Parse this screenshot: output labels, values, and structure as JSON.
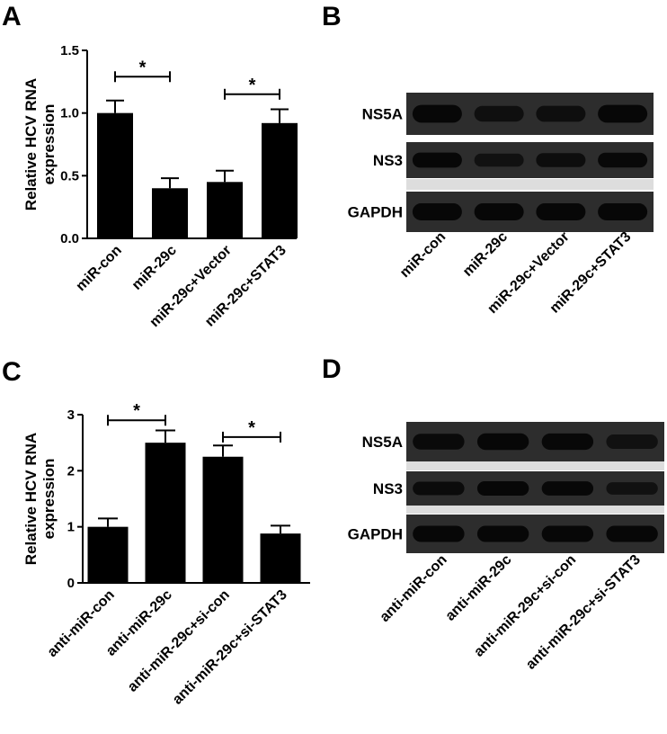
{
  "panels": {
    "A": "A",
    "B": "B",
    "C": "C",
    "D": "D"
  },
  "chart_data": [
    {
      "type": "bar",
      "panel": "A",
      "title": "",
      "xlabel": "",
      "ylabel": "Relative HCV RNA expression",
      "categories": [
        "miR-con",
        "miR-29c",
        "miR-29c+Vector",
        "miR-29c+STAT3"
      ],
      "values": [
        1.0,
        0.4,
        0.45,
        0.92
      ],
      "errors": [
        0.1,
        0.08,
        0.09,
        0.11
      ],
      "ylim": [
        0,
        1.5
      ],
      "yticks": [
        "0.0",
        "0.5",
        "1.0",
        "1.5"
      ],
      "significance": [
        {
          "from": 0,
          "to": 1,
          "label": "*",
          "level": 1.29
        },
        {
          "from": 2,
          "to": 3,
          "label": "*",
          "level": 1.15
        }
      ],
      "bar_color": "#000000",
      "grid": false,
      "legend": "none"
    },
    {
      "type": "bar",
      "panel": "C",
      "title": "",
      "xlabel": "",
      "ylabel": "Relative HCV RNA expression",
      "categories": [
        "anti-miR-con",
        "anti-miR-29c",
        "anti-miR-29c+si-con",
        "anti-miR-29c+si-STAT3"
      ],
      "values": [
        1.0,
        2.5,
        2.25,
        0.88
      ],
      "errors": [
        0.15,
        0.22,
        0.2,
        0.14
      ],
      "ylim": [
        0,
        3
      ],
      "yticks": [
        "0",
        "1",
        "2",
        "3"
      ],
      "significance": [
        {
          "from": 0,
          "to": 1,
          "label": "*",
          "level": 2.9
        },
        {
          "from": 2,
          "to": 3,
          "label": "*",
          "level": 2.6
        }
      ],
      "bar_color": "#000000",
      "grid": false,
      "legend": "none"
    }
  ],
  "blots": [
    {
      "panel": "B",
      "rows": [
        "NS5A",
        "NS3",
        "GAPDH"
      ],
      "lanes": [
        "miR-con",
        "miR-29c",
        "miR-29c+Vector",
        "miR-29c+STAT3"
      ],
      "intensity": {
        "NS5A": [
          1.0,
          0.65,
          0.7,
          1.0
        ],
        "NS3": [
          1.0,
          0.6,
          0.75,
          0.95
        ],
        "GAPDH": [
          1.0,
          1.0,
          1.0,
          1.0
        ]
      }
    },
    {
      "panel": "D",
      "rows": [
        "NS5A",
        "NS3",
        "GAPDH"
      ],
      "lanes": [
        "anti-miR-con",
        "anti-miR-29c",
        "anti-miR-29c+si-con",
        "anti-miR-29c+si-STAT3"
      ],
      "intensity": {
        "NS5A": [
          0.85,
          1.0,
          0.95,
          0.6
        ],
        "NS3": [
          0.8,
          1.0,
          0.95,
          0.6
        ],
        "GAPDH": [
          1.0,
          1.0,
          1.0,
          1.0
        ]
      }
    }
  ]
}
